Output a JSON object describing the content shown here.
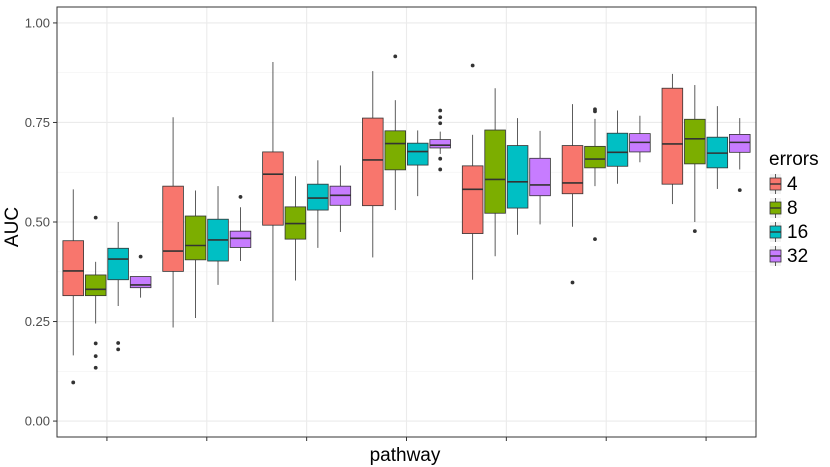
{
  "chart_data": {
    "type": "boxplot",
    "title": "",
    "xlabel": "pathway",
    "ylabel": "AUC",
    "ylim": [
      -0.04,
      1.04
    ],
    "y_ticks": [
      "0.00",
      "0.25",
      "0.50",
      "0.75",
      "1.00"
    ],
    "groups": 7,
    "legend": {
      "title": "errors",
      "position": "right"
    },
    "series": [
      {
        "name": "4",
        "color": "#F8766D",
        "boxes": [
          {
            "min": 0.165,
            "q1": 0.315,
            "median": 0.377,
            "q3": 0.453,
            "max": 0.582,
            "outliers": [
              0.097
            ]
          },
          {
            "min": 0.235,
            "q1": 0.376,
            "median": 0.427,
            "q3": 0.59,
            "max": 0.763,
            "outliers": []
          },
          {
            "min": 0.249,
            "q1": 0.492,
            "median": 0.62,
            "q3": 0.676,
            "max": 0.902,
            "outliers": []
          },
          {
            "min": 0.411,
            "q1": 0.541,
            "median": 0.656,
            "q3": 0.761,
            "max": 0.879,
            "outliers": []
          },
          {
            "min": 0.355,
            "q1": 0.471,
            "median": 0.582,
            "q3": 0.641,
            "max": 0.719,
            "outliers": [
              0.893
            ]
          },
          {
            "min": 0.488,
            "q1": 0.571,
            "median": 0.598,
            "q3": 0.692,
            "max": 0.796,
            "outliers": [
              0.348
            ]
          },
          {
            "min": 0.545,
            "q1": 0.595,
            "median": 0.696,
            "q3": 0.836,
            "max": 0.872,
            "outliers": []
          }
        ]
      },
      {
        "name": "8",
        "color": "#7CAE00",
        "boxes": [
          {
            "min": 0.245,
            "q1": 0.315,
            "median": 0.331,
            "q3": 0.367,
            "max": 0.4,
            "outliers": [
              0.511,
              0.195,
              0.163,
              0.134
            ]
          },
          {
            "min": 0.259,
            "q1": 0.405,
            "median": 0.441,
            "q3": 0.515,
            "max": 0.579,
            "outliers": []
          },
          {
            "min": 0.353,
            "q1": 0.457,
            "median": 0.496,
            "q3": 0.538,
            "max": 0.615,
            "outliers": []
          },
          {
            "min": 0.53,
            "q1": 0.631,
            "median": 0.697,
            "q3": 0.729,
            "max": 0.806,
            "outliers": [
              0.916
            ]
          },
          {
            "min": 0.414,
            "q1": 0.522,
            "median": 0.607,
            "q3": 0.731,
            "max": 0.836,
            "outliers": []
          },
          {
            "min": 0.59,
            "q1": 0.636,
            "median": 0.658,
            "q3": 0.69,
            "max": 0.759,
            "outliers": [
              0.783,
              0.778,
              0.457
            ]
          },
          {
            "min": 0.5,
            "q1": 0.646,
            "median": 0.709,
            "q3": 0.758,
            "max": 0.844,
            "outliers": [
              0.477
            ]
          }
        ]
      },
      {
        "name": "16",
        "color": "#00BFC4",
        "boxes": [
          {
            "min": 0.289,
            "q1": 0.355,
            "median": 0.407,
            "q3": 0.434,
            "max": 0.5,
            "outliers": [
              0.196,
              0.18
            ]
          },
          {
            "min": 0.342,
            "q1": 0.402,
            "median": 0.455,
            "q3": 0.507,
            "max": 0.59,
            "outliers": []
          },
          {
            "min": 0.435,
            "q1": 0.53,
            "median": 0.56,
            "q3": 0.595,
            "max": 0.655,
            "outliers": []
          },
          {
            "min": 0.565,
            "q1": 0.643,
            "median": 0.677,
            "q3": 0.698,
            "max": 0.73,
            "outliers": []
          },
          {
            "min": 0.468,
            "q1": 0.535,
            "median": 0.601,
            "q3": 0.692,
            "max": 0.761,
            "outliers": []
          },
          {
            "min": 0.596,
            "q1": 0.64,
            "median": 0.675,
            "q3": 0.723,
            "max": 0.78,
            "outliers": []
          },
          {
            "min": 0.583,
            "q1": 0.636,
            "median": 0.673,
            "q3": 0.713,
            "max": 0.791,
            "outliers": []
          }
        ]
      },
      {
        "name": "32",
        "color": "#C77CFF",
        "boxes": [
          {
            "min": 0.31,
            "q1": 0.335,
            "median": 0.342,
            "q3": 0.363,
            "max": 0.363,
            "outliers": [
              0.413
            ]
          },
          {
            "min": 0.402,
            "q1": 0.436,
            "median": 0.459,
            "q3": 0.477,
            "max": 0.537,
            "outliers": [
              0.563
            ]
          },
          {
            "min": 0.475,
            "q1": 0.542,
            "median": 0.567,
            "q3": 0.59,
            "max": 0.642,
            "outliers": []
          },
          {
            "min": 0.671,
            "q1": 0.686,
            "median": 0.693,
            "q3": 0.707,
            "max": 0.727,
            "outliers": [
              0.78,
              0.763,
              0.748,
              0.659,
              0.632
            ]
          },
          {
            "min": 0.494,
            "q1": 0.566,
            "median": 0.593,
            "q3": 0.66,
            "max": 0.729,
            "outliers": []
          },
          {
            "min": 0.65,
            "q1": 0.676,
            "median": 0.7,
            "q3": 0.722,
            "max": 0.767,
            "outliers": []
          },
          {
            "min": 0.632,
            "q1": 0.675,
            "median": 0.7,
            "q3": 0.72,
            "max": 0.761,
            "outliers": [
              0.58
            ]
          }
        ]
      }
    ]
  }
}
